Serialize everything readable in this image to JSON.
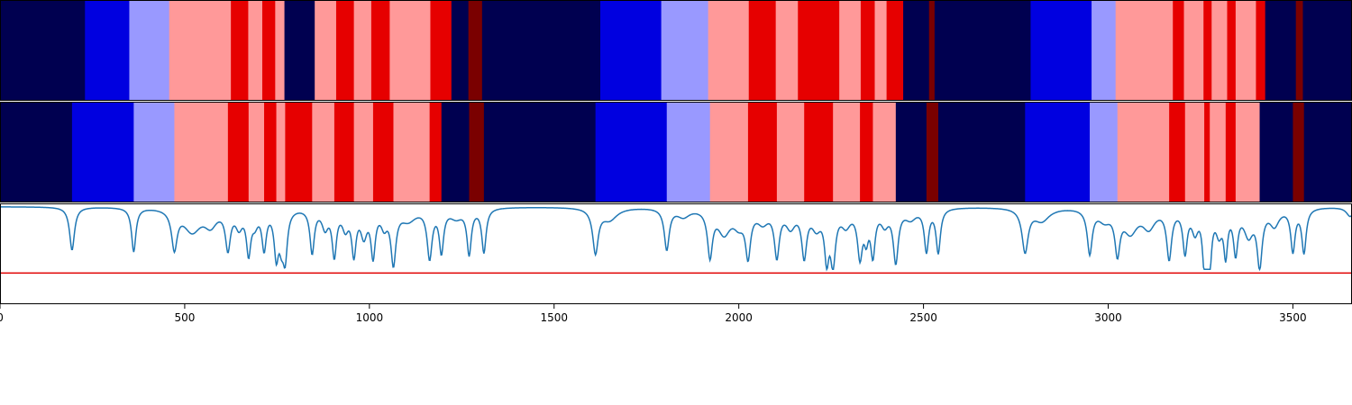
{
  "chart_data": [
    {
      "type": "heatmap",
      "title": "",
      "xlim": [
        0,
        3660
      ],
      "palette": {
        "0": "#000050",
        "1": "#0000e0",
        "2": "#9999ff",
        "3": "#ff9999",
        "4": "#e60000",
        "5": "#7a0000"
      },
      "segments": [
        [
          0,
          230,
          0
        ],
        [
          230,
          350,
          1
        ],
        [
          350,
          458,
          2
        ],
        [
          458,
          625,
          3
        ],
        [
          625,
          672,
          4
        ],
        [
          672,
          710,
          3
        ],
        [
          710,
          745,
          4
        ],
        [
          745,
          770,
          3
        ],
        [
          770,
          852,
          0
        ],
        [
          852,
          910,
          3
        ],
        [
          910,
          958,
          4
        ],
        [
          958,
          1005,
          3
        ],
        [
          1005,
          1055,
          4
        ],
        [
          1055,
          1165,
          3
        ],
        [
          1165,
          1222,
          4
        ],
        [
          1222,
          1268,
          0
        ],
        [
          1268,
          1305,
          5
        ],
        [
          1305,
          1625,
          0
        ],
        [
          1625,
          1790,
          1
        ],
        [
          1790,
          1917,
          2
        ],
        [
          1917,
          2027,
          3
        ],
        [
          2027,
          2100,
          4
        ],
        [
          2100,
          2160,
          3
        ],
        [
          2160,
          2272,
          4
        ],
        [
          2272,
          2330,
          3
        ],
        [
          2330,
          2368,
          4
        ],
        [
          2368,
          2400,
          3
        ],
        [
          2400,
          2445,
          4
        ],
        [
          2445,
          2515,
          0
        ],
        [
          2515,
          2530,
          5
        ],
        [
          2530,
          2790,
          0
        ],
        [
          2790,
          2955,
          1
        ],
        [
          2955,
          3020,
          2
        ],
        [
          3020,
          3175,
          3
        ],
        [
          3175,
          3205,
          4
        ],
        [
          3205,
          3258,
          3
        ],
        [
          3258,
          3280,
          4
        ],
        [
          3280,
          3322,
          3
        ],
        [
          3322,
          3345,
          4
        ],
        [
          3345,
          3400,
          3
        ],
        [
          3400,
          3425,
          4
        ],
        [
          3425,
          3508,
          0
        ],
        [
          3508,
          3527,
          5
        ],
        [
          3527,
          3660,
          0
        ]
      ]
    },
    {
      "type": "heatmap",
      "title": "",
      "xlim": [
        0,
        3660
      ],
      "segments": [
        [
          0,
          195,
          0
        ],
        [
          195,
          362,
          1
        ],
        [
          362,
          472,
          2
        ],
        [
          472,
          617,
          3
        ],
        [
          617,
          673,
          4
        ],
        [
          673,
          715,
          3
        ],
        [
          715,
          748,
          4
        ],
        [
          748,
          772,
          3
        ],
        [
          772,
          845,
          4
        ],
        [
          845,
          905,
          3
        ],
        [
          905,
          958,
          4
        ],
        [
          958,
          1010,
          3
        ],
        [
          1010,
          1065,
          4
        ],
        [
          1065,
          1163,
          3
        ],
        [
          1163,
          1195,
          4
        ],
        [
          1195,
          1270,
          0
        ],
        [
          1270,
          1310,
          5
        ],
        [
          1310,
          1612,
          0
        ],
        [
          1612,
          1805,
          1
        ],
        [
          1805,
          1922,
          2
        ],
        [
          1922,
          2025,
          3
        ],
        [
          2025,
          2103,
          4
        ],
        [
          2103,
          2177,
          3
        ],
        [
          2177,
          2255,
          4
        ],
        [
          2255,
          2328,
          3
        ],
        [
          2328,
          2363,
          4
        ],
        [
          2363,
          2425,
          3
        ],
        [
          2425,
          2508,
          0
        ],
        [
          2508,
          2540,
          5
        ],
        [
          2540,
          2775,
          0
        ],
        [
          2775,
          2950,
          1
        ],
        [
          2950,
          3025,
          2
        ],
        [
          3025,
          3165,
          3
        ],
        [
          3165,
          3208,
          4
        ],
        [
          3208,
          3260,
          3
        ],
        [
          3260,
          3275,
          4
        ],
        [
          3275,
          3318,
          3
        ],
        [
          3318,
          3345,
          4
        ],
        [
          3345,
          3410,
          3
        ],
        [
          3410,
          3500,
          0
        ],
        [
          3500,
          3530,
          5
        ],
        [
          3530,
          3660,
          0
        ]
      ]
    },
    {
      "type": "line",
      "title": "",
      "xlabel": "",
      "ylabel": "",
      "xlim": [
        0,
        3660
      ],
      "ylim": [
        -0.1,
        1.0
      ],
      "xticks": [
        0,
        500,
        1000,
        1500,
        2000,
        2500,
        3000,
        3500
      ],
      "xtick_labels": [
        "0",
        "500",
        "1000",
        "1500",
        "2000",
        "2500",
        "3000",
        "3500"
      ],
      "baseline_value": 0.24,
      "baseline_color": "#e00000",
      "line_color": "#1f77b4",
      "base_level": 0.965,
      "dips": [
        [
          195,
          0.47,
          8
        ],
        [
          362,
          0.48,
          7
        ],
        [
          472,
          0.42,
          9
        ],
        [
          520,
          0.25,
          28
        ],
        [
          570,
          0.17,
          20
        ],
        [
          617,
          0.42,
          8
        ],
        [
          647,
          0.18,
          11
        ],
        [
          673,
          0.46,
          7
        ],
        [
          690,
          0.14,
          10
        ],
        [
          715,
          0.42,
          7
        ],
        [
          748,
          0.48,
          7
        ],
        [
          762,
          0.3,
          8
        ],
        [
          772,
          0.48,
          7
        ],
        [
          845,
          0.48,
          7
        ],
        [
          880,
          0.2,
          10
        ],
        [
          905,
          0.5,
          7
        ],
        [
          935,
          0.2,
          10
        ],
        [
          958,
          0.48,
          7
        ],
        [
          985,
          0.28,
          10
        ],
        [
          1010,
          0.5,
          7
        ],
        [
          1040,
          0.17,
          10
        ],
        [
          1065,
          0.58,
          8
        ],
        [
          1105,
          0.13,
          25
        ],
        [
          1163,
          0.53,
          8
        ],
        [
          1195,
          0.46,
          7
        ],
        [
          1235,
          0.1,
          20
        ],
        [
          1270,
          0.49,
          7
        ],
        [
          1310,
          0.48,
          7
        ],
        [
          1612,
          0.48,
          9
        ],
        [
          1650,
          0.13,
          25
        ],
        [
          1805,
          0.45,
          8
        ],
        [
          1850,
          0.09,
          20
        ],
        [
          1922,
          0.5,
          8
        ],
        [
          1960,
          0.26,
          20
        ],
        [
          2000,
          0.16,
          18
        ],
        [
          2025,
          0.48,
          8
        ],
        [
          2065,
          0.14,
          18
        ],
        [
          2103,
          0.5,
          8
        ],
        [
          2140,
          0.19,
          15
        ],
        [
          2177,
          0.5,
          8
        ],
        [
          2210,
          0.19,
          15
        ],
        [
          2238,
          0.5,
          7
        ],
        [
          2255,
          0.56,
          8
        ],
        [
          2290,
          0.17,
          15
        ],
        [
          2328,
          0.5,
          8
        ],
        [
          2345,
          0.27,
          7
        ],
        [
          2363,
          0.48,
          7
        ],
        [
          2395,
          0.16,
          12
        ],
        [
          2425,
          0.57,
          8
        ],
        [
          2465,
          0.11,
          18
        ],
        [
          2508,
          0.46,
          7
        ],
        [
          2540,
          0.48,
          7
        ],
        [
          2775,
          0.47,
          10
        ],
        [
          2820,
          0.14,
          25
        ],
        [
          2950,
          0.48,
          8
        ],
        [
          2990,
          0.12,
          20
        ],
        [
          3025,
          0.45,
          8
        ],
        [
          3060,
          0.25,
          22
        ],
        [
          3110,
          0.2,
          20
        ],
        [
          3165,
          0.53,
          8
        ],
        [
          3208,
          0.46,
          7
        ],
        [
          3235,
          0.23,
          10
        ],
        [
          3260,
          0.5,
          6
        ],
        [
          3268,
          0.35,
          5
        ],
        [
          3275,
          0.5,
          6
        ],
        [
          3300,
          0.24,
          10
        ],
        [
          3318,
          0.47,
          6
        ],
        [
          3345,
          0.46,
          7
        ],
        [
          3380,
          0.28,
          15
        ],
        [
          3410,
          0.6,
          8
        ],
        [
          3450,
          0.18,
          15
        ],
        [
          3500,
          0.46,
          7
        ],
        [
          3530,
          0.48,
          7
        ],
        [
          3655,
          0.1,
          12
        ]
      ]
    }
  ]
}
